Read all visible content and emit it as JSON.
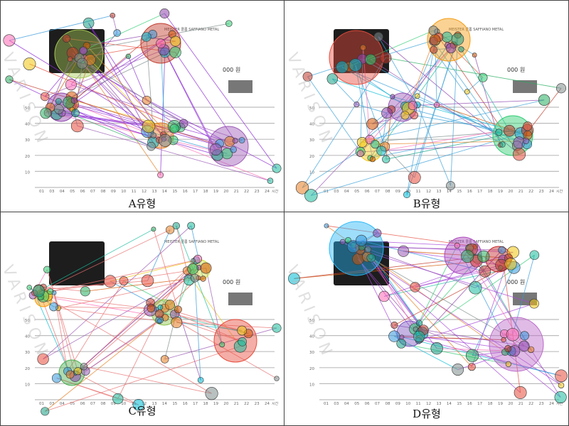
{
  "panels": [
    {
      "id": "A",
      "caption": "A유형",
      "color": "#8e2bd6",
      "accent": "#e0a020",
      "seed": 11,
      "big": [
        [
          225,
          60,
          28,
          "#c0392b"
        ],
        [
          320,
          205,
          28,
          "#9b59b6"
        ],
        [
          225,
          190,
          18,
          "#e67e22"
        ],
        [
          85,
          150,
          20,
          "#8e44ad"
        ],
        [
          110,
          75,
          34,
          "#a7c957"
        ]
      ]
    },
    {
      "id": "B",
      "caption": "B유형",
      "color": "#3aa0d8",
      "accent": "#f1c40f",
      "seed": 29,
      "big": [
        [
          100,
          80,
          38,
          "#e74c3c"
        ],
        [
          230,
          55,
          30,
          "#f39c12"
        ],
        [
          320,
          190,
          28,
          "#2ecc71"
        ],
        [
          165,
          150,
          20,
          "#9b59b6"
        ],
        [
          120,
          210,
          16,
          "#f1c40f"
        ]
      ]
    },
    {
      "id": "C",
      "caption": "C유형",
      "color": "#e86f6f",
      "accent": "#9be36f",
      "seed": 47,
      "big": [
        [
          330,
          180,
          30,
          "#e74c3c"
        ],
        [
          230,
          140,
          18,
          "#8bc34a"
        ],
        [
          100,
          225,
          18,
          "#4caf50"
        ],
        [
          60,
          120,
          12,
          "#ff9800"
        ],
        [
          280,
          80,
          14,
          "#cddc39"
        ]
      ]
    },
    {
      "id": "D",
      "caption": "D유형",
      "color": "#a646d9",
      "accent": "#33c1e0",
      "seed": 63,
      "big": [
        [
          100,
          50,
          38,
          "#29b6f6"
        ],
        [
          325,
          185,
          38,
          "#ba68c8"
        ],
        [
          250,
          60,
          26,
          "#ab47bc"
        ],
        [
          175,
          170,
          18,
          "#7e57c2"
        ],
        [
          300,
          65,
          18,
          "#c62828"
        ]
      ]
    }
  ],
  "product": {
    "title": "MEISTER 콜롬 SAFFIANO METAL",
    "price": "000 원"
  },
  "axis": {
    "x_ticks": [
      "01",
      "03",
      "04",
      "05",
      "06",
      "07",
      "08",
      "09",
      "10",
      "11",
      "12",
      "13",
      "14",
      "15",
      "16",
      "17",
      "18",
      "19",
      "20",
      "21",
      "22",
      "23",
      "24"
    ],
    "y_ticks": [
      "10",
      "20",
      "30",
      "40",
      "50"
    ],
    "x_unit": "시간"
  },
  "watermark": "VARISON"
}
